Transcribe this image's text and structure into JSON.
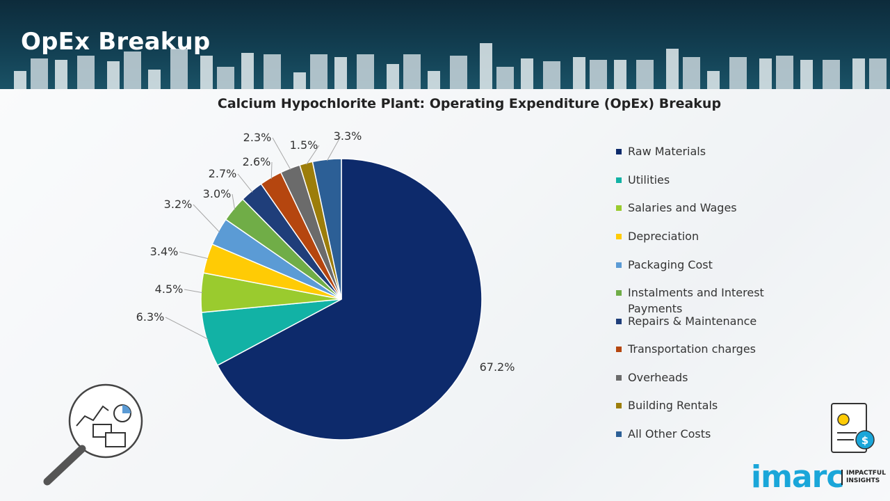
{
  "page": {
    "title": "OpEx Breakup"
  },
  "chart_data": {
    "type": "pie",
    "title": "Calcium Hypochlorite Plant: Operating Expenditure (OpEx) Breakup",
    "categories": [
      "Raw Materials",
      "Utilities",
      "Salaries and Wages",
      "Depreciation",
      "Packaging Cost",
      "Instalments and Interest Payments",
      "Repairs & Maintenance",
      "Transportation charges",
      "Overheads",
      "Building Rentals",
      "All Other Costs"
    ],
    "values": [
      67.2,
      6.3,
      4.5,
      3.4,
      3.2,
      3.0,
      2.7,
      2.6,
      2.3,
      1.5,
      3.3
    ],
    "labels": [
      "67.2%",
      "6.3%",
      "4.5%",
      "3.4%",
      "3.2%",
      "3.0%",
      "2.7%",
      "2.6%",
      "2.3%",
      "1.5%",
      "3.3%"
    ],
    "colors": [
      "#0d2a6b",
      "#12b2a5",
      "#9acb2e",
      "#ffcb05",
      "#5b9bd5",
      "#70ad47",
      "#1f3e7a",
      "#b5460f",
      "#6b6b6b",
      "#9c7d0a",
      "#2c5f96"
    ],
    "legend_position": "right"
  },
  "logo": {
    "brand": "imarc",
    "tagline": "IMPACTFUL INSIGHTS"
  }
}
